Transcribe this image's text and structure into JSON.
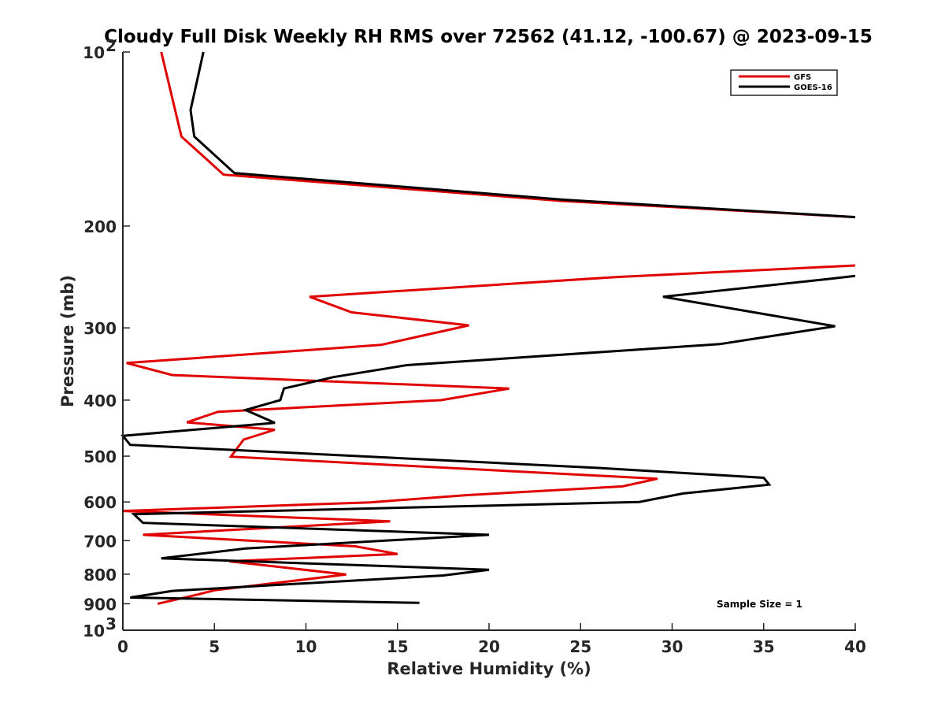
{
  "chart_data": {
    "type": "line",
    "title": "Cloudy Full Disk Weekly RH RMS over 72562 (41.12, -100.67) @ 2023-09-15",
    "xlabel": "Relative Humidity (%)",
    "ylabel": "Pressure (mb)",
    "xlim": [
      0,
      40
    ],
    "ylim": [
      100,
      1000
    ],
    "yscale": "log",
    "y_reversed": true,
    "x_ticks": [
      "0",
      "5",
      "10",
      "15",
      "20",
      "25",
      "30",
      "35",
      "40"
    ],
    "y_ticks": [
      {
        "value": 100,
        "label": "10",
        "sup": "2"
      },
      {
        "value": 200,
        "label": "200",
        "sup": ""
      },
      {
        "value": 300,
        "label": "300",
        "sup": ""
      },
      {
        "value": 400,
        "label": "400",
        "sup": ""
      },
      {
        "value": 500,
        "label": "500",
        "sup": ""
      },
      {
        "value": 600,
        "label": "600",
        "sup": ""
      },
      {
        "value": 700,
        "label": "700",
        "sup": ""
      },
      {
        "value": 800,
        "label": "800",
        "sup": ""
      },
      {
        "value": 900,
        "label": "900",
        "sup": ""
      },
      {
        "value": 1000,
        "label": "10",
        "sup": "3"
      }
    ],
    "grid": false,
    "legend_position": "top-right",
    "annotation": "Sample Size = 1",
    "series": [
      {
        "name": "GFS",
        "color": "#e00000",
        "points": [
          [
            2.1,
            100
          ],
          [
            3.2,
            140
          ],
          [
            5.5,
            163
          ],
          [
            24.0,
            181
          ],
          [
            40.0,
            193
          ],
          [
            null,
            null
          ],
          [
            40.0,
            234
          ],
          [
            27.0,
            245
          ],
          [
            10.2,
            265
          ],
          [
            12.5,
            282
          ],
          [
            18.9,
            297
          ],
          [
            14.1,
            321
          ],
          [
            0.2,
            345
          ],
          [
            2.7,
            362
          ],
          [
            21.1,
            382
          ],
          [
            17.4,
            400
          ],
          [
            5.2,
            419
          ],
          [
            3.5,
            437
          ],
          [
            8.3,
            450
          ],
          [
            6.6,
            468
          ],
          [
            5.9,
            501
          ],
          [
            29.2,
            547
          ],
          [
            27.3,
            564
          ],
          [
            18.8,
            584
          ],
          [
            13.5,
            601
          ],
          [
            0.0,
            622
          ],
          [
            14.6,
            648
          ],
          [
            1.1,
            684
          ],
          [
            12.7,
            716
          ],
          [
            15.0,
            738
          ],
          [
            5.8,
            760
          ],
          [
            12.2,
            801
          ],
          [
            5.0,
            853
          ],
          [
            4.0,
            869
          ],
          [
            1.9,
            900
          ]
        ]
      },
      {
        "name": "GOES-16",
        "color": "#000000",
        "points": [
          [
            4.4,
            100
          ],
          [
            3.7,
            126
          ],
          [
            3.9,
            140
          ],
          [
            6.1,
            162
          ],
          [
            24.0,
            180
          ],
          [
            40.0,
            193
          ],
          [
            null,
            null
          ],
          [
            40.0,
            244
          ],
          [
            38.5,
            247
          ],
          [
            29.5,
            265
          ],
          [
            38.9,
            298
          ],
          [
            32.6,
            320
          ],
          [
            15.5,
            348
          ],
          [
            11.5,
            365
          ],
          [
            8.8,
            382
          ],
          [
            8.6,
            400
          ],
          [
            6.7,
            416
          ],
          [
            8.3,
            438
          ],
          [
            0.0,
            461
          ],
          [
            0.4,
            478
          ],
          [
            26.0,
            524
          ],
          [
            35.0,
            545
          ],
          [
            35.3,
            560
          ],
          [
            30.6,
            580
          ],
          [
            28.2,
            600
          ],
          [
            0.6,
            630
          ],
          [
            1.1,
            652
          ],
          [
            20.0,
            684
          ],
          [
            6.7,
            722
          ],
          [
            2.1,
            751
          ],
          [
            20.0,
            786
          ],
          [
            17.5,
            804
          ],
          [
            2.7,
            855
          ],
          [
            0.4,
            878
          ],
          [
            16.2,
            897
          ]
        ]
      }
    ]
  }
}
